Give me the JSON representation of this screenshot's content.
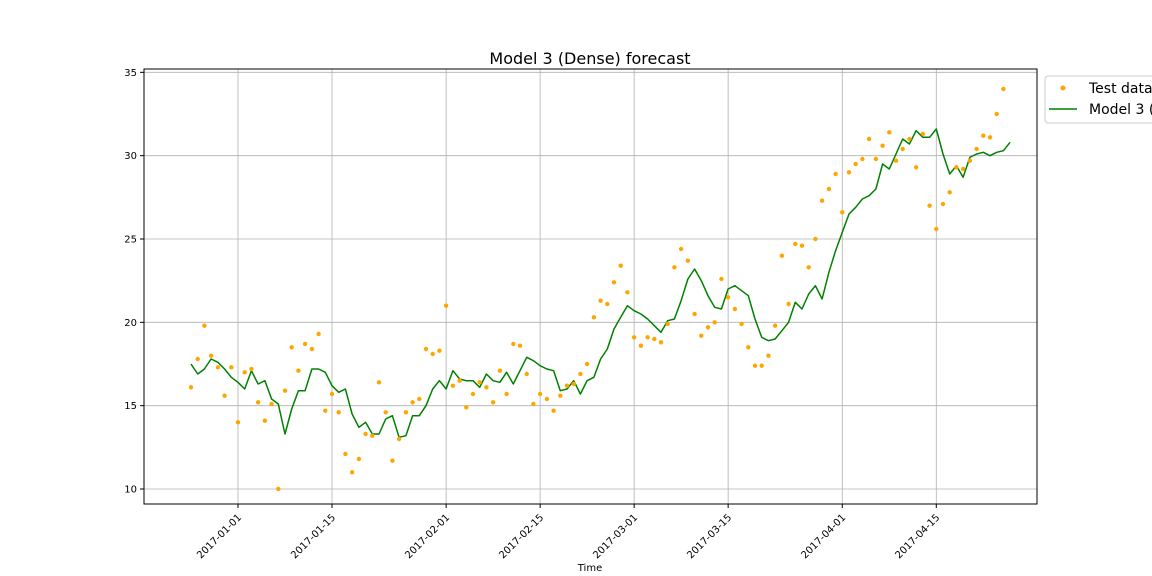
{
  "chart_data": {
    "type": "line",
    "title": "Model 3 (Dense) forecast",
    "xlabel": "Time",
    "ylabel": "",
    "x_type": "date",
    "xlim": [
      "2016-12-18",
      "2017-04-30"
    ],
    "ylim": [
      9.1,
      35.2
    ],
    "grid": true,
    "legend_position": "outside-top-right",
    "x_ticks": [
      "2017-01-01",
      "2017-01-15",
      "2017-02-01",
      "2017-02-15",
      "2017-03-01",
      "2017-03-15",
      "2017-04-01",
      "2017-04-15"
    ],
    "y_ticks": [
      10,
      15,
      20,
      25,
      30,
      35
    ],
    "series": [
      {
        "name": "Test data",
        "style": "points",
        "color": "#ffa500",
        "start_date": "2016-12-25",
        "values": [
          16.1,
          17.8,
          19.8,
          18.0,
          17.3,
          15.6,
          17.3,
          14.0,
          17.0,
          17.2,
          15.2,
          14.1,
          15.1,
          10.0,
          15.9,
          18.5,
          17.1,
          18.7,
          18.4,
          19.3,
          14.7,
          15.7,
          14.6,
          12.1,
          11.0,
          11.8,
          13.3,
          13.2,
          16.4,
          14.6,
          11.7,
          13.0,
          14.6,
          15.2,
          15.4,
          18.4,
          18.1,
          18.3,
          21.0,
          16.2,
          16.5,
          14.9,
          15.7,
          16.4,
          16.1,
          15.2,
          17.1,
          15.7,
          18.7,
          18.6,
          16.9,
          15.1,
          15.7,
          15.4,
          14.7,
          15.6,
          16.2,
          16.3,
          16.9,
          17.5,
          20.3,
          21.3,
          21.1,
          22.4,
          23.4,
          21.8,
          19.1,
          18.6,
          19.1,
          19.0,
          18.8,
          19.9,
          23.3,
          24.4,
          23.7,
          20.5,
          19.2,
          19.7,
          20.0,
          22.6,
          21.5,
          20.8,
          19.9,
          18.5,
          17.4,
          17.4,
          18.0,
          19.8,
          24.0,
          21.1,
          24.7,
          24.6,
          23.3,
          25.0,
          27.3,
          28.0,
          28.9,
          26.6,
          29.0,
          29.5,
          29.8,
          31.0,
          29.8,
          30.6,
          31.4,
          29.7,
          30.4,
          31.0,
          29.3,
          31.3,
          27.0,
          25.6,
          27.1,
          27.8,
          29.3,
          29.2,
          29.7,
          30.4,
          31.2,
          31.1,
          32.5,
          34.0
        ]
      },
      {
        "name": "Model 3 (",
        "style": "line",
        "color": "#008000",
        "start_date": "2016-12-25",
        "values": [
          17.5,
          16.9,
          17.2,
          17.8,
          17.6,
          17.2,
          16.7,
          16.4,
          16.0,
          17.1,
          16.3,
          16.5,
          15.4,
          15.1,
          13.3,
          14.8,
          15.9,
          15.9,
          17.2,
          17.2,
          17.0,
          16.2,
          15.8,
          16.0,
          14.5,
          13.7,
          14.0,
          13.3,
          13.3,
          14.2,
          14.4,
          13.1,
          13.2,
          14.4,
          14.4,
          15.0,
          16.0,
          16.5,
          16.0,
          17.1,
          16.6,
          16.5,
          16.5,
          16.1,
          16.9,
          16.5,
          16.4,
          17.0,
          16.3,
          17.1,
          17.9,
          17.7,
          17.4,
          17.2,
          17.1,
          15.9,
          16.0,
          16.5,
          15.7,
          16.5,
          16.7,
          17.8,
          18.4,
          19.6,
          20.3,
          21.0,
          20.7,
          20.5,
          20.2,
          19.8,
          19.4,
          20.1,
          20.2,
          21.3,
          22.6,
          23.2,
          22.5,
          21.6,
          20.9,
          20.8,
          22.0,
          22.2,
          21.9,
          21.6,
          20.2,
          19.1,
          18.9,
          19.0,
          19.5,
          20.0,
          21.2,
          20.8,
          21.7,
          22.2,
          21.4,
          23.0,
          24.3,
          25.4,
          26.5,
          26.9,
          27.4,
          27.6,
          28.0,
          29.5,
          29.2,
          30.1,
          31.0,
          30.7,
          31.5,
          31.1,
          31.1,
          31.6,
          30.1,
          28.9,
          29.4,
          28.7,
          29.9,
          30.1,
          30.2,
          30.0,
          30.2,
          30.3,
          30.8
        ]
      }
    ]
  }
}
